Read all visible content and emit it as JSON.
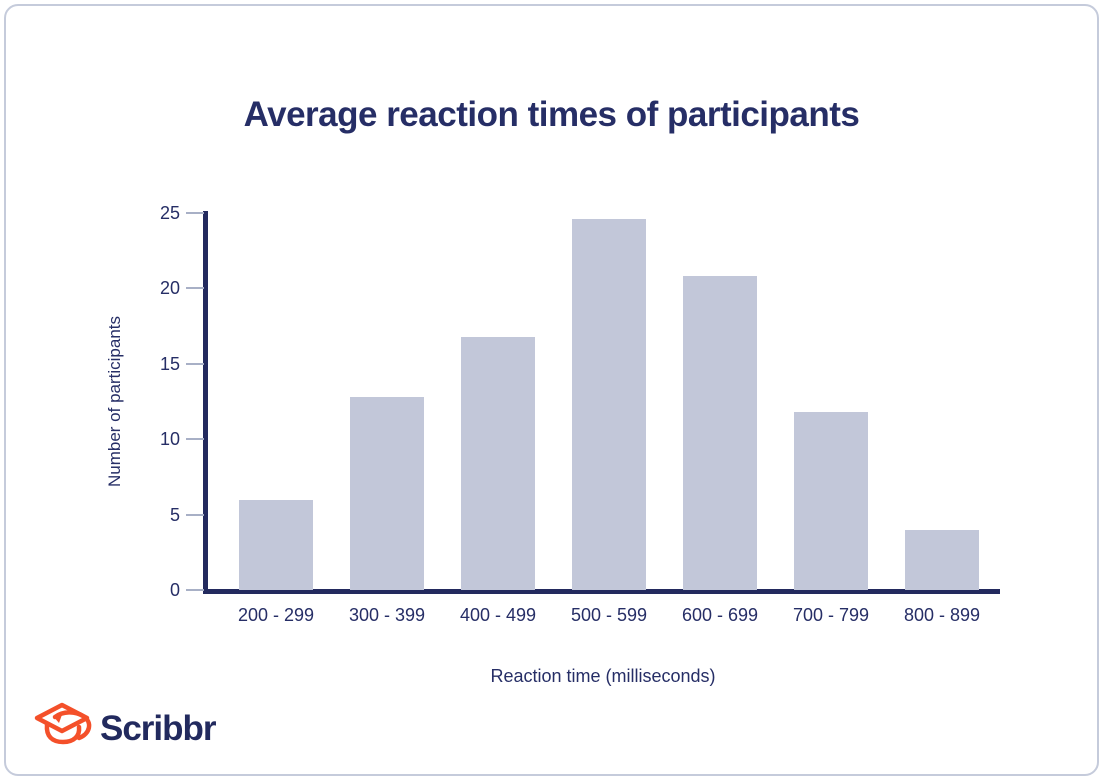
{
  "chart_data": {
    "type": "bar",
    "title": "Average reaction times of participants",
    "categories": [
      "200 - 299",
      "300 - 399",
      "400 - 499",
      "500 - 599",
      "600 - 699",
      "700 - 799",
      "800 - 899"
    ],
    "values": [
      6,
      12.8,
      16.8,
      24.6,
      20.8,
      11.8,
      4
    ],
    "xlabel": "Reaction time (milliseconds)",
    "ylabel": "Number of participants",
    "yticks": [
      0,
      5,
      10,
      15,
      20,
      25
    ],
    "ylim": [
      0,
      25
    ],
    "grid": false,
    "legend": false
  },
  "theme": {
    "navy": "#262e66",
    "axis_navy": "#232a5e",
    "bar_fill": "#c2c7d9",
    "tick_gray": "#a8b0c6",
    "border_c": "#c5cbdb",
    "orange": "#f4502a",
    "wordmark_navy": "#222a5e",
    "bg": "#ffffff"
  },
  "footer": {
    "brand": "Scribbr"
  }
}
